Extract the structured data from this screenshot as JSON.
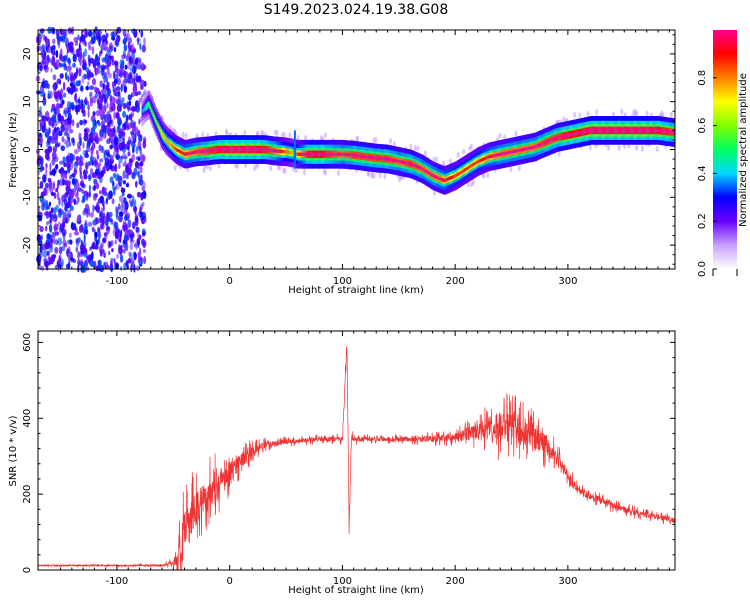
{
  "title": "S149.2023.024.19.38.G08",
  "chart_data": [
    {
      "type": "heatmap",
      "xlabel": "Height of straight line (km)",
      "ylabel": "Frequency (Hz)",
      "xlim": [
        -170,
        395
      ],
      "ylim": [
        -25,
        25
      ],
      "x_ticks": [
        -100,
        0,
        100,
        200,
        300
      ],
      "y_ticks": [
        -20,
        -10,
        0,
        10,
        20
      ],
      "noise_region_x": [
        -170,
        -75
      ],
      "trace": {
        "x": [
          -78,
          -72,
          -66,
          -60,
          -55,
          -48,
          -40,
          -30,
          -20,
          -10,
          0,
          10,
          20,
          30,
          40,
          50,
          57,
          60,
          70,
          80,
          90,
          100,
          110,
          120,
          130,
          140,
          150,
          160,
          170,
          180,
          190,
          200,
          210,
          220,
          230,
          240,
          250,
          260,
          270,
          280,
          290,
          300,
          310,
          320,
          330,
          340,
          350,
          360,
          370,
          380,
          395
        ],
        "y": [
          8,
          9.5,
          6,
          3,
          1.5,
          0,
          -1,
          -0.5,
          -0.3,
          0,
          0,
          0,
          0,
          0,
          -0.3,
          -0.5,
          -0.8,
          -1,
          -1,
          -1,
          -1,
          -1,
          -1.2,
          -1.5,
          -1.8,
          -2,
          -2.5,
          -3,
          -4,
          -5.5,
          -6.5,
          -5.5,
          -4,
          -2.5,
          -1.5,
          -1,
          -0.5,
          0,
          0.5,
          1.5,
          2.5,
          3,
          3.5,
          4,
          4,
          4,
          4,
          4,
          4,
          4,
          3.5
        ],
        "amplitude": [
          0.3,
          0.45,
          0.5,
          0.6,
          0.6,
          0.7,
          0.75,
          0.8,
          0.85,
          0.9,
          0.95,
          0.95,
          0.95,
          0.9,
          0.8,
          0.65,
          0.6,
          0.7,
          0.9,
          0.9,
          0.85,
          0.8,
          0.85,
          0.85,
          0.85,
          0.85,
          0.8,
          0.85,
          0.8,
          0.8,
          0.75,
          0.7,
          0.7,
          0.7,
          0.75,
          0.8,
          0.8,
          0.8,
          0.8,
          0.85,
          0.85,
          0.9,
          0.9,
          0.95,
          0.95,
          0.95,
          0.95,
          0.95,
          0.95,
          0.9,
          0.85
        ]
      },
      "colorbar": {
        "label": "Normalized spectral amplitude",
        "range": [
          0,
          1
        ],
        "ticks": [
          0.0,
          0.2,
          0.4,
          0.6,
          0.8
        ],
        "colors": [
          "#ffffff",
          "#c8a0ff",
          "#6a00ff",
          "#0000ff",
          "#00d8ff",
          "#00ff60",
          "#80ff00",
          "#ffff00",
          "#ff8000",
          "#ff0000",
          "#ff0090"
        ]
      }
    },
    {
      "type": "line",
      "xlabel": "Height of straight line (km)",
      "ylabel": "SNR (10 * v/v)",
      "xlim": [
        -170,
        395
      ],
      "ylim": [
        0,
        630
      ],
      "x_ticks": [
        -100,
        0,
        100,
        200,
        300
      ],
      "y_ticks": [
        0,
        200,
        400,
        600
      ],
      "color": "#ee3333",
      "series": [
        {
          "x": [
            -170,
            -60,
            -50,
            -45,
            -40,
            -30,
            -20,
            -10,
            0,
            10,
            20,
            30,
            40,
            60,
            80,
            100,
            104,
            106,
            108,
            110,
            120,
            140,
            160,
            180,
            200,
            220,
            240,
            260,
            280,
            290,
            300,
            310,
            320,
            340,
            360,
            380,
            395
          ],
          "y": [
            12,
            12,
            20,
            40,
            100,
            160,
            200,
            230,
            260,
            290,
            310,
            330,
            335,
            340,
            345,
            345,
            600,
            100,
            350,
            345,
            345,
            345,
            345,
            345,
            350,
            365,
            380,
            370,
            330,
            300,
            250,
            210,
            195,
            170,
            150,
            140,
            130
          ],
          "jitter": [
            2,
            3,
            10,
            60,
            80,
            70,
            60,
            55,
            45,
            30,
            20,
            12,
            10,
            8,
            8,
            10,
            30,
            30,
            15,
            10,
            8,
            8,
            10,
            12,
            15,
            30,
            60,
            55,
            40,
            25,
            18,
            15,
            14,
            12,
            12,
            10,
            10
          ]
        }
      ]
    }
  ]
}
